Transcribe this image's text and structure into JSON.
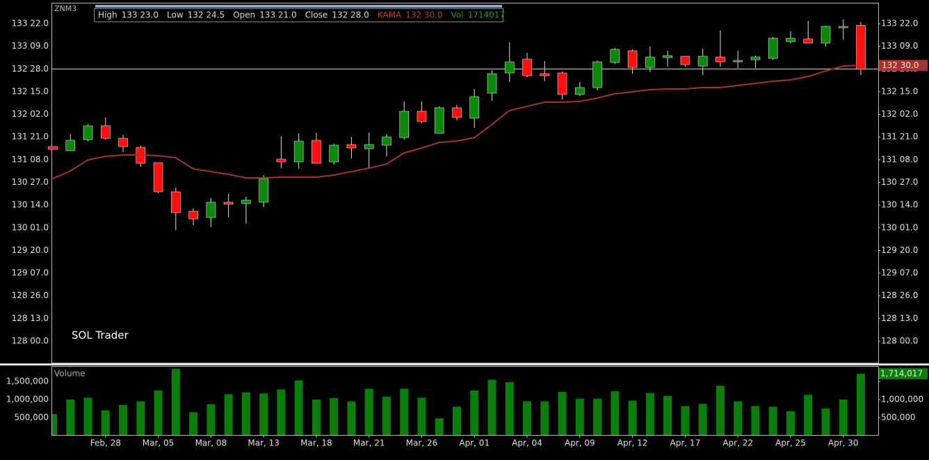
{
  "chart_data": [
    {
      "type": "candlestick",
      "symbol": "ZNM3",
      "header": [
        {
          "name": "High",
          "value": "133 23.0",
          "color": "#d8d8d8"
        },
        {
          "name": "Low",
          "value": "132 24.5",
          "color": "#d8d8d8"
        },
        {
          "name": "Open",
          "value": "133 21.0",
          "color": "#d8d8d8"
        },
        {
          "name": "Close",
          "value": "132 28.0",
          "color": "#d8d8d8"
        },
        {
          "name": "KAMA",
          "value": "132 30.0",
          "color": "#c03a30"
        },
        {
          "name": "Vol",
          "value": "1714017",
          "color": "#1f9a1f"
        }
      ],
      "open": [
        131.485,
        131.41,
        131.609,
        131.858,
        131.634,
        131.472,
        131.198,
        130.676,
        130.327,
        130.215,
        130.489,
        130.464,
        130.489,
        131.261,
        131.211,
        131.597,
        131.211,
        131.522,
        131.447,
        131.51,
        131.646,
        132.119,
        131.721,
        132.182,
        131.995,
        132.443,
        132.804,
        133.053,
        132.791,
        132.804,
        132.418,
        132.542,
        132.991,
        133.202,
        132.903,
        133.078,
        133.103,
        132.928,
        133.09,
        133.015,
        133.04,
        133.065,
        133.364,
        133.414,
        133.339,
        133.613,
        133.65625
      ],
      "high": [
        131.485,
        131.709,
        131.883,
        132.007,
        131.696,
        131.497,
        131.198,
        130.75,
        130.377,
        130.564,
        130.638,
        130.588,
        130.974,
        131.671,
        131.721,
        131.734,
        131.534,
        131.659,
        131.734,
        131.709,
        132.294,
        132.294,
        132.206,
        132.231,
        132.518,
        132.854,
        133.352,
        133.165,
        133.015,
        132.829,
        132.642,
        133.028,
        133.252,
        133.227,
        133.277,
        133.202,
        133.103,
        133.239,
        133.563,
        133.202,
        133.115,
        133.451,
        133.551,
        133.737,
        133.65,
        133.762,
        133.71875
      ],
      "low": [
        131.435,
        131.41,
        131.584,
        131.609,
        131.385,
        131.124,
        130.651,
        129.991,
        130.078,
        130.041,
        130.215,
        130.103,
        130.402,
        131.099,
        131.086,
        131.186,
        131.161,
        131.273,
        131.086,
        131.31,
        131.609,
        131.908,
        131.721,
        131.958,
        131.821,
        132.306,
        132.642,
        132.729,
        132.654,
        132.331,
        132.393,
        132.493,
        132.966,
        132.791,
        132.816,
        132.916,
        132.916,
        132.766,
        132.916,
        132.891,
        132.891,
        133.04,
        133.339,
        133.339,
        133.277,
        133.401,
        132.765625
      ],
      "close": [
        131.435,
        131.597,
        131.858,
        131.634,
        131.485,
        131.186,
        130.676,
        130.302,
        130.19,
        130.489,
        130.452,
        130.526,
        130.912,
        131.211,
        131.584,
        131.186,
        131.51,
        131.46,
        131.522,
        131.659,
        132.119,
        131.933,
        132.182,
        132.007,
        132.381,
        132.791,
        133.003,
        132.754,
        132.754,
        132.418,
        132.542,
        133.003,
        133.227,
        132.903,
        133.09,
        133.115,
        132.953,
        133.103,
        133.003,
        133.028,
        133.09,
        133.426,
        133.426,
        133.339,
        133.638,
        133.638,
        132.875
      ],
      "up_color": "#0a8a0a",
      "down_color": "#ff1010",
      "series": [
        {
          "name": "KAMA",
          "color": "#a8322c",
          "values": [
            130.912,
            131.049,
            131.248,
            131.31,
            131.335,
            131.335,
            131.323,
            131.285,
            131.086,
            131.037,
            130.987,
            130.925,
            130.925,
            130.937,
            130.937,
            130.937,
            130.974,
            131.037,
            131.099,
            131.173,
            131.373,
            131.46,
            131.559,
            131.584,
            131.646,
            131.883,
            132.132,
            132.206,
            132.281,
            132.281,
            132.294,
            132.356,
            132.43,
            132.468,
            132.505,
            132.518,
            132.518,
            132.542,
            132.542,
            132.58,
            132.617,
            132.654,
            132.679,
            132.742,
            132.841,
            132.928,
            132.9375
          ]
        }
      ],
      "price_line": 132.875,
      "kama_label": "132 30.0",
      "ylim": [
        127.614,
        134.061
      ],
      "yticks": [
        {
          "value": 128.0,
          "label": "128 00.0"
        },
        {
          "value": 128.40625,
          "label": "128 13.0"
        },
        {
          "value": 128.8125,
          "label": "128 26.0"
        },
        {
          "value": 129.21875,
          "label": "129 07.0"
        },
        {
          "value": 129.625,
          "label": "129 20.0"
        },
        {
          "value": 130.03125,
          "label": "130 01.0"
        },
        {
          "value": 130.4375,
          "label": "130 14.0"
        },
        {
          "value": 130.84375,
          "label": "130 27.0"
        },
        {
          "value": 131.25,
          "label": "131 08.0"
        },
        {
          "value": 131.65625,
          "label": "131 21.0"
        },
        {
          "value": 132.0625,
          "label": "132 02.0"
        },
        {
          "value": 132.46875,
          "label": "132 15.0"
        },
        {
          "value": 132.875,
          "label": "132 28.0"
        },
        {
          "value": 133.28125,
          "label": "133 09.0"
        },
        {
          "value": 133.6875,
          "label": "133 22.0"
        }
      ],
      "annotation": "SOL Trader"
    },
    {
      "type": "bar",
      "title": "Volume",
      "categories": [
        null,
        null,
        null,
        "Feb, 28",
        null,
        null,
        "Mar, 05",
        null,
        null,
        "Mar, 08",
        null,
        null,
        "Mar, 13",
        null,
        null,
        "Mar, 18",
        null,
        null,
        "Mar, 21",
        null,
        null,
        "Mar, 26",
        null,
        null,
        "Apr, 01",
        null,
        null,
        "Apr, 04",
        null,
        null,
        "Apr, 09",
        null,
        null,
        "Apr, 12",
        null,
        null,
        "Apr, 17",
        null,
        null,
        "Apr, 22",
        null,
        null,
        "Apr, 25",
        null,
        null,
        "Apr, 30",
        null
      ],
      "values": [
        600000,
        1000000,
        1050000,
        700000,
        850000,
        950000,
        1250000,
        1850000,
        650000,
        870000,
        1150000,
        1200000,
        1170000,
        1280000,
        1530000,
        1000000,
        1040000,
        950000,
        1300000,
        1080000,
        1300000,
        1050000,
        480000,
        800000,
        1250000,
        1550000,
        1480000,
        950000,
        950000,
        1210000,
        1020000,
        1020000,
        1230000,
        970000,
        1180000,
        1100000,
        820000,
        880000,
        1380000,
        950000,
        820000,
        800000,
        680000,
        1130000,
        750000,
        1000000,
        1714017
      ],
      "color": "#0a7d0a",
      "ylim": [
        0,
        2000000
      ],
      "yticks": [
        {
          "value": 500000,
          "label": "500,000"
        },
        {
          "value": 1000000,
          "label": "1,000,000"
        },
        {
          "value": 1500000,
          "label": "1,500,000"
        }
      ],
      "last_label": "1,714,017"
    }
  ]
}
